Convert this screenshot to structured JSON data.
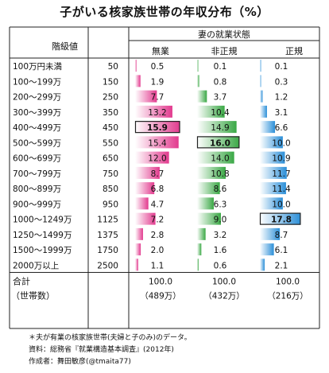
{
  "title": "子がいる核家族世帯の年収分布（%）",
  "header": {
    "class_value": "階級値",
    "wife_status": "妻の就業状態",
    "col1": "無業",
    "col2": "非正規",
    "col3": "正規"
  },
  "colors": {
    "col1": "#e23a8e",
    "col2": "#3aa845",
    "col3": "#2b8fd8",
    "highlight_border": "#222222"
  },
  "chart_data": {
    "type": "table",
    "title": "子がいる核家族世帯の年収分布（%）",
    "row_labels": [
      "100万円未満",
      "100～199万",
      "200～299万",
      "300～399万",
      "400～499万",
      "500～599万",
      "600～699万",
      "700～799万",
      "800～899万",
      "900～999万",
      "1000～1249万",
      "1250～1499万",
      "1500～1999万",
      "2000万以上"
    ],
    "class_values": [
      "50",
      "150",
      "250",
      "350",
      "450",
      "550",
      "650",
      "750",
      "850",
      "950",
      "1125",
      "1375",
      "1750",
      "2500"
    ],
    "series": [
      {
        "name": "無業",
        "values": [
          0.5,
          1.9,
          7.7,
          13.2,
          15.9,
          15.4,
          12.0,
          8.7,
          6.8,
          4.7,
          7.2,
          2.8,
          2.0,
          1.1
        ]
      },
      {
        "name": "非正規",
        "values": [
          0.1,
          0.8,
          3.7,
          10.4,
          14.9,
          16.0,
          14.0,
          10.8,
          8.6,
          6.3,
          9.0,
          3.2,
          1.6,
          0.6
        ]
      },
      {
        "name": "正規",
        "values": [
          0.1,
          0.3,
          1.2,
          3.1,
          6.6,
          10.0,
          10.9,
          11.7,
          11.4,
          10.0,
          17.8,
          8.7,
          6.1,
          2.1
        ]
      }
    ],
    "bold_index": [
      4,
      5,
      10
    ],
    "scale_max": 18
  },
  "totals": {
    "label": "合計",
    "values": [
      "100.0",
      "100.0",
      "100.0"
    ],
    "households_label": "（世帯数）",
    "households": [
      "（489万）",
      "（432万）",
      "（216万）"
    ]
  },
  "notes": [
    "＊夫が有業の核家族世帯(夫婦と子のみ)のデータ。",
    "資料：総務省『就業構造基本調査』(2012年)",
    "作成者：舞田敏彦(@tmaita77)"
  ]
}
